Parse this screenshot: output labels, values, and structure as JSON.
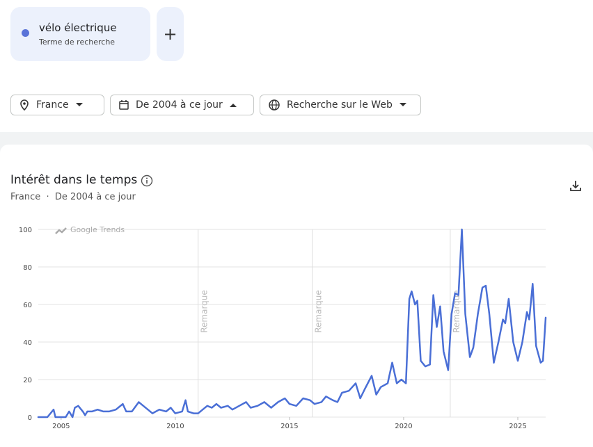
{
  "header": {
    "subtitle": "Terme de recherche"
  },
  "filters": {
    "region": "France",
    "period": "De 2004 à ce jour",
    "source": "Recherche sur le Web"
  },
  "panel": {
    "title": "Intérêt dans le temps",
    "region": "France",
    "period": "De 2004 à ce jour"
  },
  "chart_data": {
    "type": "line",
    "watermark": "Google Trends",
    "x": [
      2004.0,
      2004.4,
      2004.67,
      2004.75,
      2005.0,
      2005.2,
      2005.35,
      2005.5,
      2005.6,
      2005.75,
      2005.95,
      2006.05,
      2006.15,
      2006.35,
      2006.6,
      2006.85,
      2007.1,
      2007.4,
      2007.7,
      2007.85,
      2008.1,
      2008.4,
      2008.6,
      2008.8,
      2009.0,
      2009.3,
      2009.6,
      2009.8,
      2010.0,
      2010.3,
      2010.45,
      2010.55,
      2010.8,
      2011.0,
      2011.2,
      2011.4,
      2011.6,
      2011.8,
      2012.0,
      2012.3,
      2012.5,
      2012.8,
      2013.1,
      2013.3,
      2013.6,
      2013.9,
      2014.2,
      2014.5,
      2014.8,
      2015.0,
      2015.3,
      2015.6,
      2015.9,
      2016.1,
      2016.4,
      2016.6,
      2016.9,
      2017.1,
      2017.3,
      2017.6,
      2017.9,
      2018.1,
      2018.3,
      2018.6,
      2018.8,
      2019.0,
      2019.3,
      2019.5,
      2019.7,
      2019.9,
      2020.1,
      2020.25,
      2020.35,
      2020.5,
      2020.6,
      2020.75,
      2020.95,
      2021.15,
      2021.3,
      2021.45,
      2021.6,
      2021.75,
      2021.95,
      2022.1,
      2022.25,
      2022.4,
      2022.55,
      2022.7,
      2022.9,
      2023.05,
      2023.25,
      2023.45,
      2023.6,
      2023.75,
      2023.95,
      2024.15,
      2024.35,
      2024.45,
      2024.6,
      2024.8,
      2025.0,
      2025.2,
      2025.4,
      2025.5,
      2025.65,
      2025.8,
      2026.0,
      2026.1,
      2026.22
    ],
    "series": [
      {
        "name": "vélo électrique",
        "color": "#4a6fd6",
        "values": [
          0,
          0,
          4,
          0,
          0,
          0,
          3,
          0,
          5,
          6,
          3,
          1,
          3,
          3,
          4,
          3,
          3,
          4,
          7,
          3,
          3,
          8,
          6,
          4,
          2,
          4,
          3,
          5,
          2,
          3,
          9,
          3,
          2,
          2,
          4,
          6,
          5,
          7,
          5,
          6,
          4,
          6,
          8,
          5,
          6,
          8,
          5,
          8,
          10,
          7,
          6,
          10,
          9,
          7,
          8,
          11,
          9,
          8,
          13,
          14,
          18,
          10,
          15,
          22,
          12,
          16,
          18,
          29,
          18,
          20,
          18,
          63,
          67,
          60,
          62,
          30,
          27,
          28,
          65,
          48,
          59,
          35,
          25,
          55,
          66,
          65,
          100,
          55,
          32,
          37,
          55,
          69,
          70,
          55,
          29,
          40,
          52,
          50,
          63,
          40,
          30,
          40,
          56,
          52,
          71,
          38,
          29,
          30,
          53
        ]
      }
    ],
    "xlim": [
      2004.0,
      2026.22
    ],
    "ylim": [
      0,
      100
    ],
    "xticks": [
      2005,
      2010,
      2015,
      2020,
      2025
    ],
    "yticks": [
      0,
      20,
      40,
      60,
      80,
      100
    ],
    "grid": true,
    "annotations": [
      {
        "x": 2011.0,
        "text": "Remarque"
      },
      {
        "x": 2016.0,
        "text": "Remarque"
      },
      {
        "x": 2022.04,
        "text": "Remarque"
      }
    ]
  }
}
